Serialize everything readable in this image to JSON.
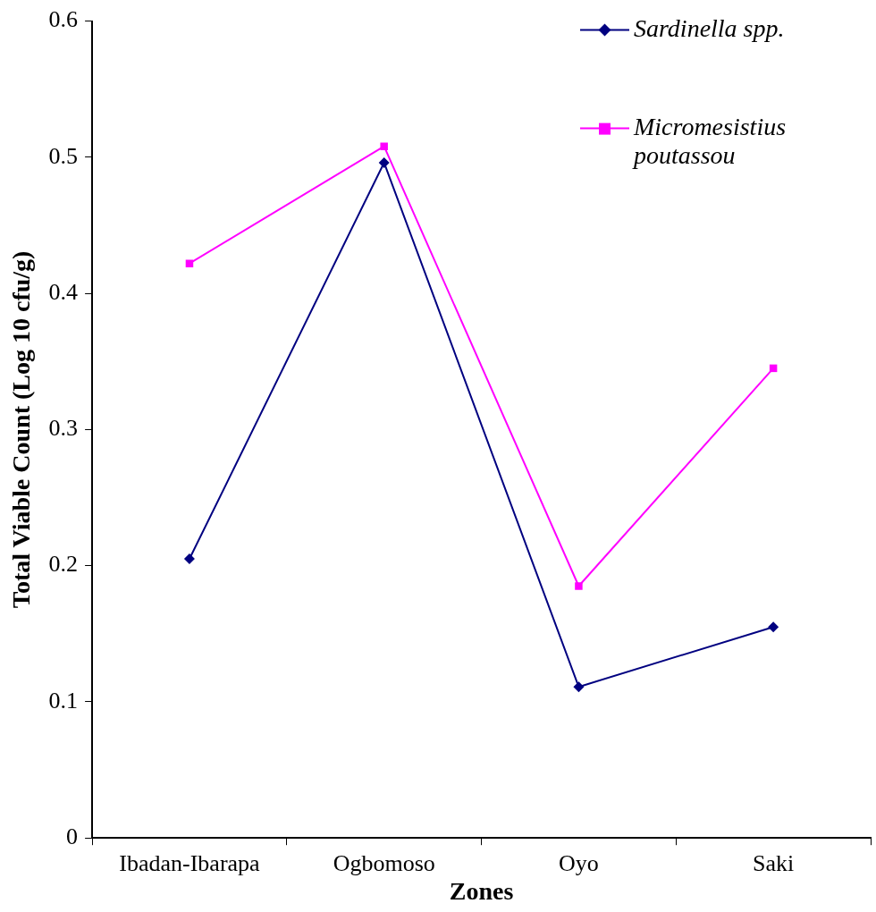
{
  "chart_data": {
    "type": "line",
    "xlabel": "Zones",
    "ylabel": "Total Viable Count (Log 10 cfu/g)",
    "categories": [
      "Ibadan-Ibarapa",
      "Ogbomoso",
      "Oyo",
      "Saki"
    ],
    "series": [
      {
        "name": "Sardinella spp.",
        "color": "#000080",
        "marker": "diamond",
        "values": [
          0.205,
          0.496,
          0.111,
          0.155
        ]
      },
      {
        "name": "Micromesistius poutassou",
        "color": "#ff00ff",
        "marker": "square",
        "values": [
          0.422,
          0.508,
          0.185,
          0.345
        ]
      }
    ],
    "ylim": [
      0,
      0.6
    ],
    "yticks": [
      0,
      0.1,
      0.2,
      0.3,
      0.4,
      0.5,
      0.6
    ],
    "grid": false,
    "legend": "top right",
    "line_style": "solid"
  }
}
